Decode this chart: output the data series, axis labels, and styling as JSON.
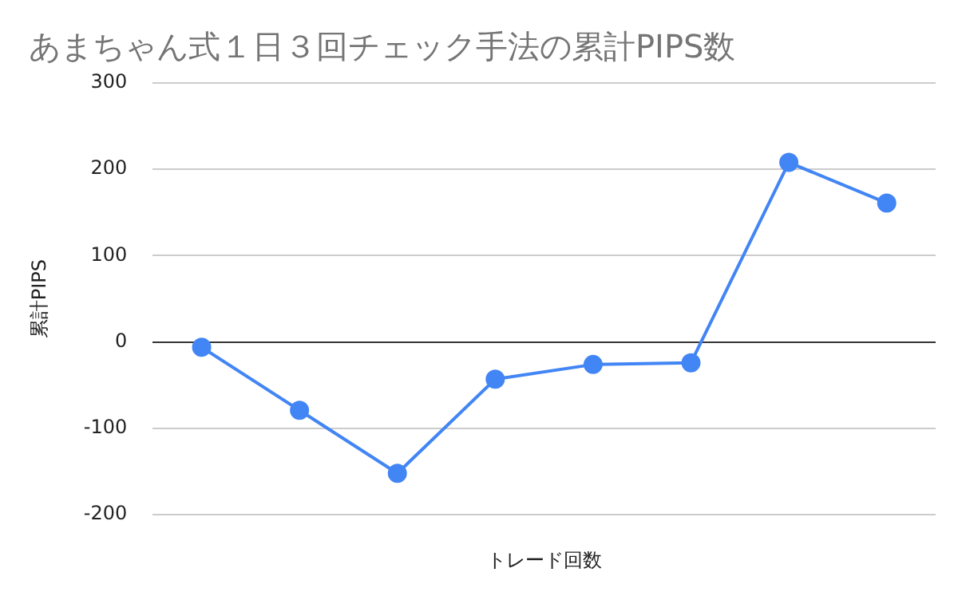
{
  "chart_data": {
    "type": "line",
    "title": "あまちゃん式１日３回チェック手法の累計PIPS数",
    "xlabel": "トレード回数",
    "ylabel": "累計PIPS",
    "categories": [
      null,
      null,
      null,
      null,
      null,
      null,
      null,
      null
    ],
    "series": [
      {
        "color": "#4285f4",
        "values": [
          -6,
          -79,
          -152,
          -43,
          -26,
          -24,
          208,
          161
        ]
      }
    ],
    "ylim": [
      -200,
      300
    ],
    "yticks": [
      -200,
      -100,
      0,
      100,
      200,
      300
    ],
    "grid": "y",
    "legend": false,
    "marker": "circle",
    "line_style": "solid"
  }
}
